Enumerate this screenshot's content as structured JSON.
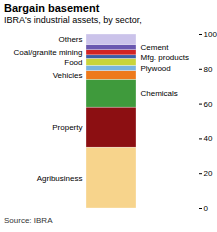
{
  "chart_data": {
    "type": "bar",
    "stacked": true,
    "title": "Bargain basement",
    "subtitle": "IBRA's industrial assets, by sector,",
    "caption": "Source: IBRA",
    "categories": [
      "Agribusiness",
      "Property",
      "Chemicals",
      "Vehicles",
      "Plywood",
      "Food",
      "Mfg. products",
      "Coal/granite mining",
      "Cement",
      "Others"
    ],
    "values": [
      35,
      23,
      16,
      5,
      3,
      4,
      2,
      3,
      3,
      6
    ],
    "colors": [
      "#f7d48c",
      "#8c0f12",
      "#3f9a3c",
      "#ee7a1c",
      "#79b4e0",
      "#c9d43c",
      "#3a5fa8",
      "#d22424",
      "#6a58b0",
      "#cbc3ea"
    ],
    "ylim": [
      0,
      100
    ],
    "yticks": [
      0,
      20,
      40,
      60,
      80,
      100
    ],
    "grid": false
  }
}
